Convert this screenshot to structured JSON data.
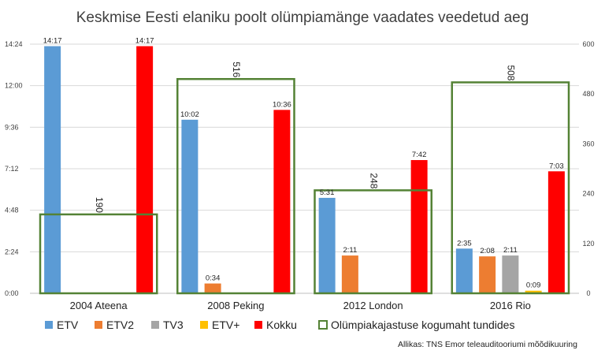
{
  "chart_data": {
    "type": "bar",
    "title": "Keskmise Eesti elaniku poolt olümpiamänge vaadates veedetud aeg",
    "categories": [
      "2004 Ateena",
      "2008 Peking",
      "2012 London",
      "2016 Rio"
    ],
    "left_axis": {
      "ticks": [
        "0:00",
        "2:24",
        "4:48",
        "7:12",
        "9:36",
        "12:00",
        "14:24"
      ],
      "range_minutes": [
        0,
        864
      ]
    },
    "right_axis": {
      "ticks": [
        "0",
        "120",
        "240",
        "360",
        "480",
        "600"
      ],
      "range_hours": [
        0,
        600
      ]
    },
    "series": [
      {
        "name": "ETV",
        "color": "#5b9bd5",
        "values": [
          "14:17",
          "10:02",
          "5:31",
          "2:35"
        ],
        "minutes": [
          857,
          602,
          331,
          155
        ]
      },
      {
        "name": "ETV2",
        "color": "#ed7d31",
        "values": [
          null,
          "0:34",
          "2:11",
          "2:08"
        ],
        "minutes": [
          null,
          34,
          131,
          128
        ]
      },
      {
        "name": "TV3",
        "color": "#a5a5a5",
        "values": [
          null,
          null,
          null,
          "2:11"
        ],
        "minutes": [
          null,
          null,
          null,
          131
        ]
      },
      {
        "name": "ETV+",
        "color": "#ffc000",
        "values": [
          null,
          null,
          null,
          "0:09"
        ],
        "minutes": [
          null,
          null,
          null,
          9
        ]
      },
      {
        "name": "Kokku",
        "color": "#ff0000",
        "values": [
          "14:17",
          "10:36",
          "7:42",
          "7:03"
        ],
        "minutes": [
          857,
          636,
          462,
          423
        ]
      }
    ],
    "coverage": {
      "name": "Olümpiakajastuse kogumaht tundides",
      "color": "#548235",
      "values": [
        190,
        516,
        248,
        508
      ]
    },
    "legend_position": "bottom",
    "grid": true,
    "source": "Allikas: TNS Emor teleauditooriumi mõõdikuuring"
  }
}
